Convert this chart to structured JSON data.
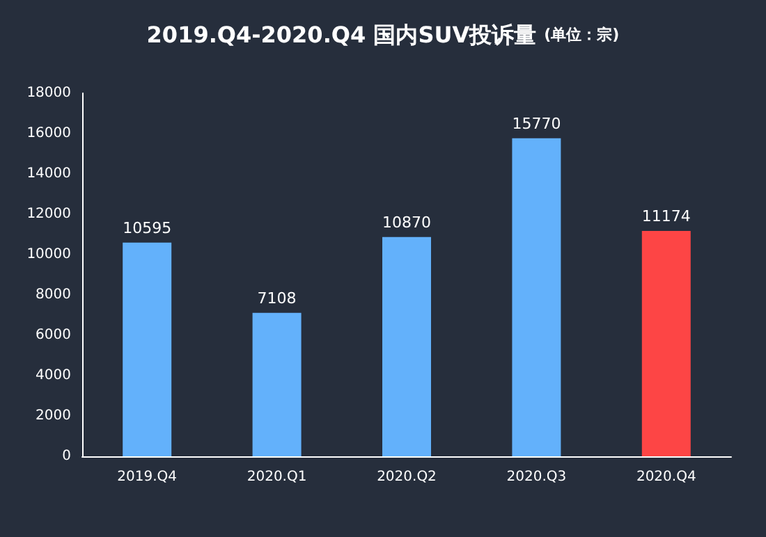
{
  "chart_data": {
    "type": "bar",
    "title": "2019.Q4-2020.Q4 国内SUV投诉量",
    "subtitle": "(单位：宗)",
    "categories": [
      "2019.Q4",
      "2020.Q1",
      "2020.Q2",
      "2020.Q3",
      "2020.Q4"
    ],
    "values": [
      10595,
      7108,
      10870,
      15770,
      11174
    ],
    "colors": [
      "#63b1fb",
      "#63b1fb",
      "#63b1fb",
      "#63b1fb",
      "#fd4545"
    ],
    "ylim": [
      0,
      18000
    ],
    "yticks": [
      0,
      2000,
      4000,
      6000,
      8000,
      10000,
      12000,
      14000,
      16000,
      18000
    ],
    "data_labels": true,
    "grid": false
  }
}
